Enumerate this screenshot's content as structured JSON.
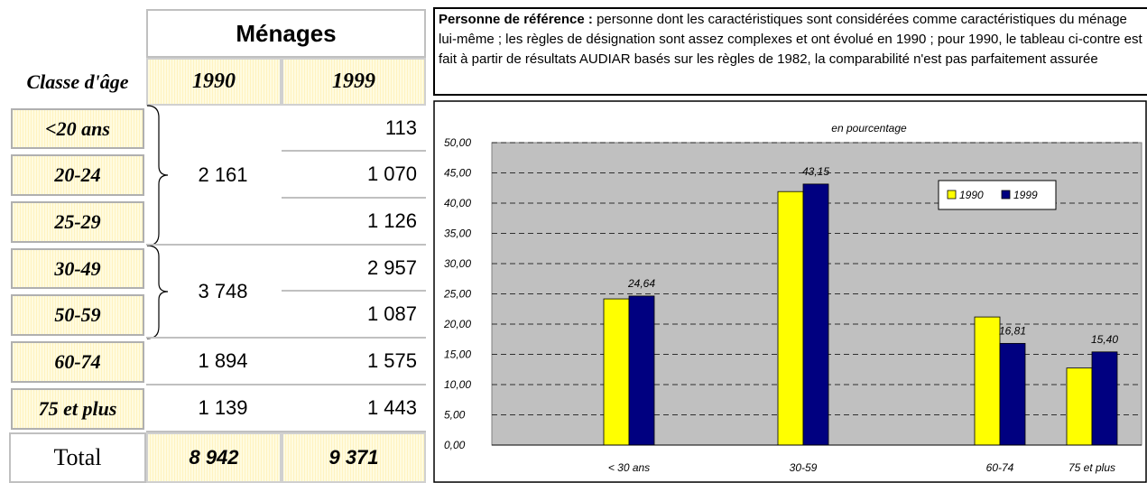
{
  "table": {
    "title": "Ménages",
    "age_header": "Classe d'âge",
    "columns": [
      "1990",
      "1999"
    ],
    "age_classes": [
      "<20 ans",
      "20-24",
      "25-29",
      "30-49",
      "50-59",
      "60-74",
      "75 et plus"
    ],
    "values_1990": [
      "2 161",
      "3 748",
      "1 894",
      "1 139"
    ],
    "values_1999": [
      "113",
      "1 070",
      "1 126",
      "2 957",
      "1 087",
      "1 575",
      "1 443"
    ],
    "total_label": "Total",
    "totals": [
      "8 942",
      "9 371"
    ]
  },
  "note": {
    "bold": "Personne de référence :",
    "text": "personne dont les caractéristiques sont considérées comme caractéristiques du ménage lui-même ; les règles de désignation sont assez complexes et ont évolué en 1990 ; pour 1990, le tableau ci-contre est fait à partir de résultats AUDIAR basés sur les règles de 1982, la comparabilité n'est pas parfaitement assurée"
  },
  "chart_data": {
    "type": "bar",
    "title": "en pourcentage",
    "categories": [
      "< 30 ans",
      "30-59",
      "60-74",
      "75 et plus"
    ],
    "series": [
      {
        "name": "1990",
        "color": "#ffff00",
        "values": [
          24.17,
          41.91,
          21.18,
          12.74
        ]
      },
      {
        "name": "1999",
        "color": "#000080",
        "values": [
          24.64,
          43.15,
          16.81,
          15.4
        ],
        "value_labels": [
          "24,64",
          "43,15",
          "16,81",
          "15,40"
        ]
      }
    ],
    "ylim": [
      0,
      50
    ],
    "yticks": [
      {
        "value": 0,
        "label": "0,00"
      },
      {
        "value": 5,
        "label": "5,00"
      },
      {
        "value": 10,
        "label": "10,00"
      },
      {
        "value": 15,
        "label": "15,00"
      },
      {
        "value": 20,
        "label": "20,00"
      },
      {
        "value": 25,
        "label": "25,00"
      },
      {
        "value": 30,
        "label": "30,00"
      },
      {
        "value": 35,
        "label": "35,00"
      },
      {
        "value": 40,
        "label": "40,00"
      },
      {
        "value": 45,
        "label": "45,00"
      },
      {
        "value": 50,
        "label": "50,00"
      }
    ],
    "grid": true,
    "legend": "top-right"
  }
}
